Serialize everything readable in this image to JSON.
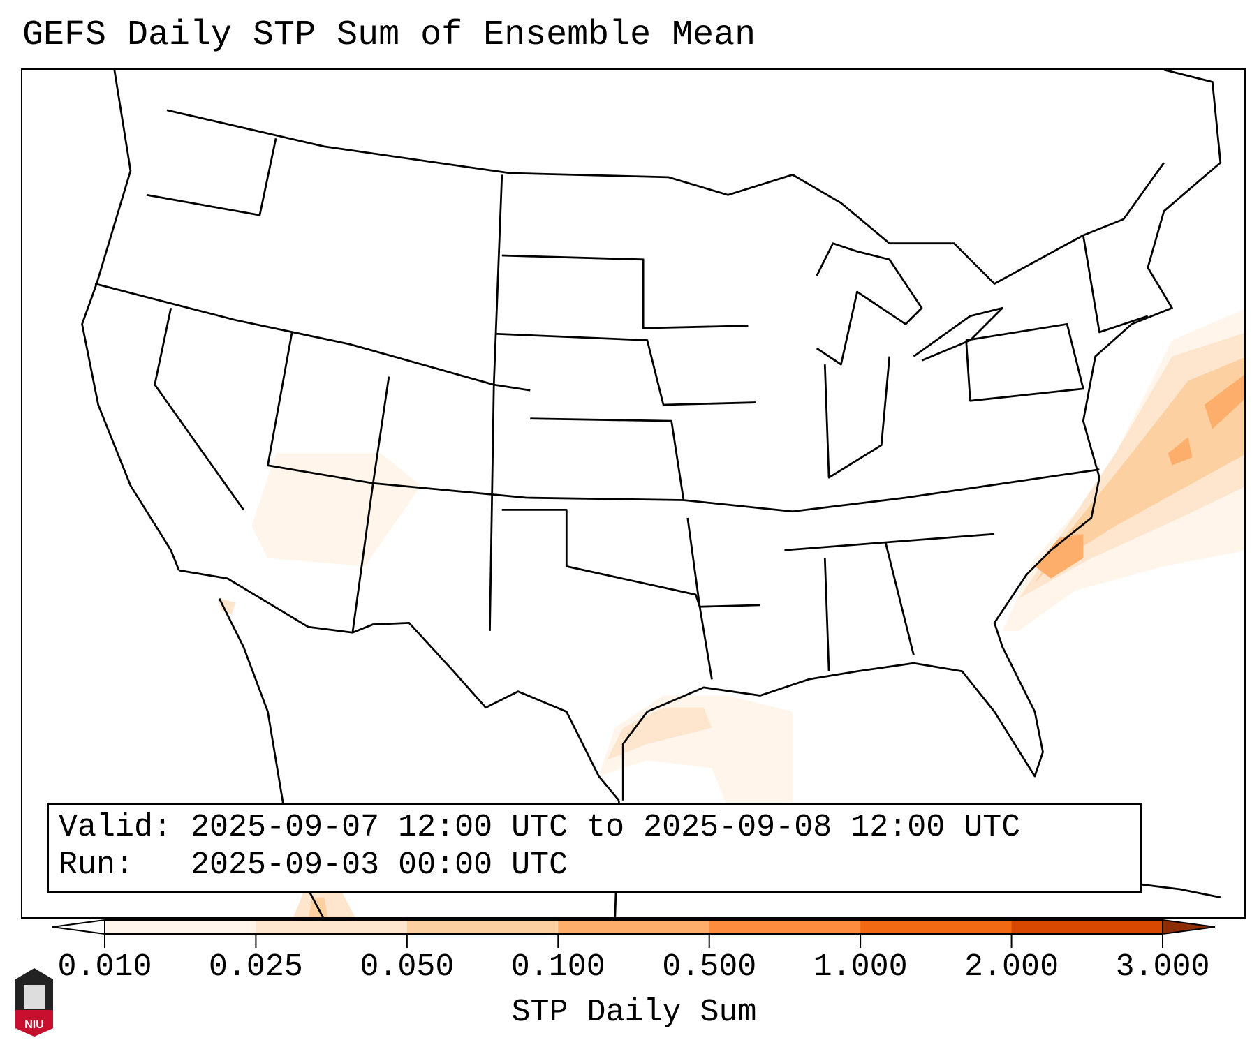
{
  "title": "GEFS Daily STP Sum of Ensemble Mean",
  "info": {
    "valid_label": "Valid:",
    "valid_value": "2025-09-07 12:00 UTC to 2025-09-08 12:00 UTC",
    "run_label": "Run:",
    "run_value": "2025-09-03 00:00 UTC"
  },
  "colorbar": {
    "label": "STP Daily Sum",
    "ticks": [
      "0.010",
      "0.025",
      "0.050",
      "0.100",
      "0.500",
      "1.000",
      "2.000",
      "3.000"
    ],
    "colors": [
      "#fff5eb",
      "#fee6ce",
      "#fdd0a2",
      "#fdae6b",
      "#fd8d3c",
      "#f16913",
      "#d94801"
    ],
    "over_color": "#8c2d04",
    "under_color": "#ffffff"
  },
  "logo": {
    "text": "NIU",
    "color": "#c8102e"
  }
}
